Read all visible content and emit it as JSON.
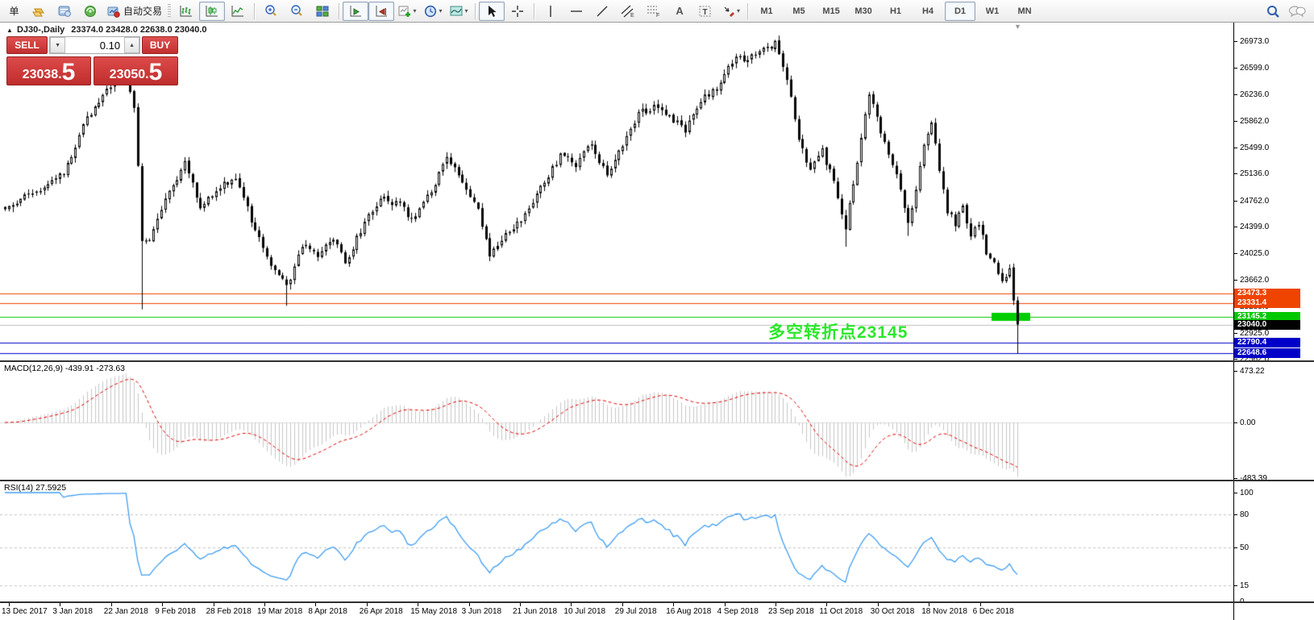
{
  "icons": {
    "caret": "▾",
    "collapse": "▲",
    "scroll_marker": "▼",
    "spin_up": "▲",
    "spin_down": "▼",
    "text_tool": "A",
    "label_tool": "T",
    "vline_tool": "|",
    "hline_tool": "—",
    "trend_tool": "/"
  },
  "toolbar": {
    "new_order_label": "单",
    "autotrade_label": "自动交易",
    "timeframes": [
      "M1",
      "M5",
      "M15",
      "M30",
      "H1",
      "H4",
      "D1",
      "W1",
      "MN"
    ],
    "active_timeframe": "D1"
  },
  "window": {
    "title_symbol": "DJ30-,Daily",
    "title_ohlc": "23374.0 23428.0 22638.0 23040.0"
  },
  "trade_panel": {
    "sell_label": "SELL",
    "buy_label": "BUY",
    "volume": "0.10",
    "sell_price_int": "23038",
    "sell_price_dec": "5",
    "buy_price_int": "23050",
    "buy_price_dec": "5"
  },
  "annotation": {
    "text": "多空转折点23145",
    "color": "#2BE82B"
  },
  "price_axis": {
    "ticks": [
      "26973.0",
      "26599.0",
      "26236.0",
      "25862.0",
      "25499.0",
      "25136.0",
      "24762.0",
      "24399.0",
      "24025.0",
      "23662.0",
      "23288.0",
      "22925.0",
      "22562.0"
    ]
  },
  "levels": [
    {
      "value": "23473.3",
      "price": 23473.3,
      "color": "#EE4400",
      "type": "resistance-line"
    },
    {
      "value": "23331.4",
      "price": 23331.4,
      "color": "#EE4400",
      "type": "resistance-line"
    },
    {
      "value": "23145.2",
      "price": 23145.2,
      "color": "#00C800",
      "type": "pivot-line"
    },
    {
      "value": "23040.0",
      "price": 23040.0,
      "color": "#000000",
      "line_color": "#BEBEBE",
      "type": "current-price"
    },
    {
      "value": "22790.4",
      "price": 22790.4,
      "color": "#0000C8",
      "type": "support-line"
    },
    {
      "value": "22648.6",
      "price": 22648.6,
      "color": "#0000C8",
      "type": "support-line"
    }
  ],
  "macd": {
    "label": "MACD(12,26,9) -439.91 -273.63",
    "value": "-439.91",
    "signal": "-273.63",
    "axis_ticks": [
      "473.22",
      "0.00",
      "-483.39"
    ]
  },
  "rsi": {
    "label": "RSI(14) 27.5925",
    "value": "27.5925",
    "axis_ticks": [
      "100",
      "80",
      "50",
      "15",
      "0"
    ],
    "levels": [
      80,
      50,
      15
    ]
  },
  "date_axis": [
    "13 Dec 2017",
    "3 Jan 2018",
    "22 Jan 2018",
    "9 Feb 2018",
    "28 Feb 2018",
    "19 Mar 2018",
    "8 Apr 2018",
    "26 Apr 2018",
    "15 May 2018",
    "3 Jun 2018",
    "21 Jun 2018",
    "10 Jul 2018",
    "29 Jul 2018",
    "16 Aug 2018",
    "4 Sep 2018",
    "23 Sep 2018",
    "11 Oct 2018",
    "30 Oct 2018",
    "18 Nov 2018",
    "6 Dec 2018"
  ],
  "chart_data": {
    "type": "candlestick",
    "symbol": "DJ30-",
    "period": "Daily",
    "title": "DJ30-,Daily 23374.0 23428.0 22638.0 23040.0",
    "price_axis_range": [
      22562.0,
      26973.0
    ],
    "last_candle": {
      "open": 23374.0,
      "high": 23428.0,
      "low": 22638.0,
      "close": 23040.0
    },
    "bid": 23038.5,
    "ask": 23050.5,
    "candle_count": 260,
    "close_keyframes": [
      [
        0,
        24650
      ],
      [
        5,
        24800
      ],
      [
        10,
        24900
      ],
      [
        15,
        25150
      ],
      [
        21,
        25900
      ],
      [
        27,
        26350
      ],
      [
        31,
        26616
      ],
      [
        33,
        26000
      ],
      [
        34,
        25250
      ],
      [
        35,
        24190
      ],
      [
        37,
        24250
      ],
      [
        41,
        24750
      ],
      [
        46,
        25290
      ],
      [
        50,
        24650
      ],
      [
        55,
        24950
      ],
      [
        59,
        25100
      ],
      [
        63,
        24500
      ],
      [
        68,
        23900
      ],
      [
        72,
        23550
      ],
      [
        76,
        24150
      ],
      [
        80,
        23980
      ],
      [
        84,
        24250
      ],
      [
        87,
        23880
      ],
      [
        91,
        24350
      ],
      [
        96,
        24800
      ],
      [
        101,
        24700
      ],
      [
        104,
        24480
      ],
      [
        108,
        24800
      ],
      [
        113,
        25320
      ],
      [
        117,
        25050
      ],
      [
        121,
        24600
      ],
      [
        124,
        23990
      ],
      [
        128,
        24290
      ],
      [
        132,
        24480
      ],
      [
        137,
        24950
      ],
      [
        142,
        25390
      ],
      [
        146,
        25270
      ],
      [
        150,
        25550
      ],
      [
        154,
        25100
      ],
      [
        158,
        25550
      ],
      [
        162,
        25970
      ],
      [
        166,
        26050
      ],
      [
        170,
        25920
      ],
      [
        174,
        25730
      ],
      [
        178,
        26150
      ],
      [
        182,
        26300
      ],
      [
        186,
        26700
      ],
      [
        190,
        26750
      ],
      [
        197,
        26940
      ],
      [
        200,
        26450
      ],
      [
        203,
        25600
      ],
      [
        206,
        25200
      ],
      [
        209,
        25450
      ],
      [
        212,
        25000
      ],
      [
        215,
        24400
      ],
      [
        218,
        25250
      ],
      [
        221,
        26250
      ],
      [
        224,
        25700
      ],
      [
        227,
        25300
      ],
      [
        229,
        24900
      ],
      [
        231,
        24420
      ],
      [
        233,
        24950
      ],
      [
        235,
        25500
      ],
      [
        237,
        25880
      ],
      [
        239,
        25150
      ],
      [
        241,
        24600
      ],
      [
        243,
        24450
      ],
      [
        245,
        24650
      ],
      [
        247,
        24250
      ],
      [
        249,
        24450
      ],
      [
        251,
        24050
      ],
      [
        253,
        23880
      ],
      [
        255,
        23650
      ],
      [
        257,
        23820
      ],
      [
        258,
        23374
      ],
      [
        259,
        23040
      ]
    ],
    "low_overrides": {
      "35": 23250,
      "72": 23300,
      "215": 24120,
      "231": 24270
    },
    "high_overrides": {
      "31": 26680,
      "197": 26990
    },
    "horizontal_levels": [
      23473.3,
      23331.4,
      23145.2,
      23040.0,
      22790.4,
      22648.6
    ],
    "pivot_highlight": {
      "price": 23145.2,
      "color": "#00CE00"
    },
    "indicators": {
      "macd": {
        "params": [
          12,
          26,
          9
        ],
        "last_main": -439.91,
        "last_signal": -273.63,
        "axis_max": 473.22,
        "axis_min": -483.39
      },
      "rsi": {
        "params": [
          14
        ],
        "last_value": 27.5925,
        "levels": [
          80,
          50,
          15
        ],
        "axis": [
          0,
          100
        ]
      }
    }
  }
}
